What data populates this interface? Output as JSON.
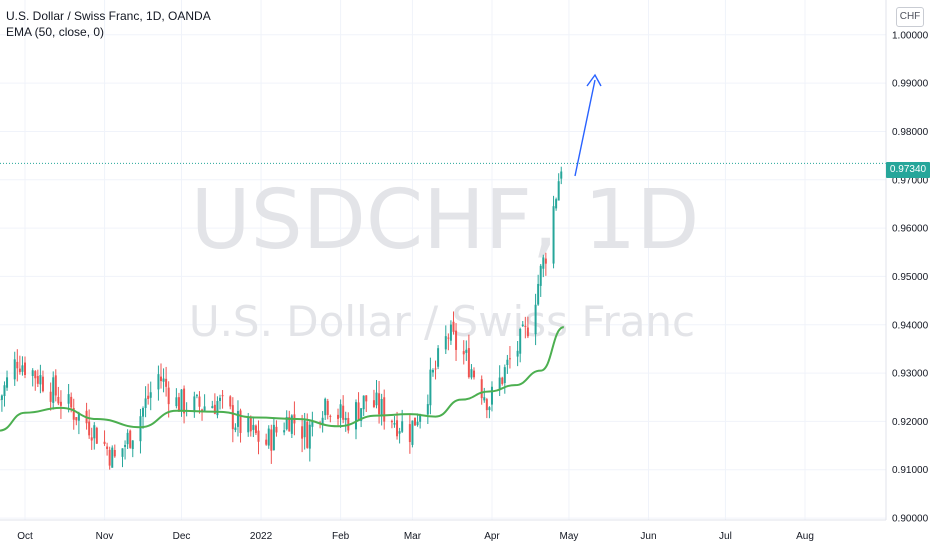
{
  "legend": {
    "title": "U.S. Dollar / Swiss Franc, 1D, OANDA",
    "indicator": "EMA (50, close, 0)"
  },
  "currency_button": "CHF",
  "watermark": {
    "symbol": "USDCHF, 1D",
    "name": "U.S. Dollar / Swiss Franc"
  },
  "colors": {
    "up": "#26a69a",
    "down": "#ef5350",
    "ema": "#4caf50",
    "arrow": "#2962ff",
    "grid": "#f0f3fa"
  },
  "chart_data": {
    "type": "candlestick",
    "title": "U.S. Dollar / Swiss Franc, 1D, OANDA",
    "current_price": "0.97340",
    "y_ticks": [
      "1.00000",
      "0.99000",
      "0.98000",
      "0.97000",
      "0.96000",
      "0.95000",
      "0.94000",
      "0.93000",
      "0.92000",
      "0.91000",
      "0.90000"
    ],
    "ylim": [
      0.8996,
      1.0072
    ],
    "x_ticks": [
      "Oct",
      "Nov",
      "Dec",
      "2022",
      "Feb",
      "Mar",
      "Apr",
      "May",
      "Jun",
      "Jul",
      "Aug"
    ],
    "x_tick_dates": [
      "2021-10-01",
      "2021-11-01",
      "2021-12-01",
      "2022-01-01",
      "2022-02-01",
      "2022-03-01",
      "2022-04-01",
      "2022-05-01",
      "2022-06-01",
      "2022-07-01",
      "2022-08-01"
    ],
    "close_waypoints": [
      [
        "2021-09-21",
        0.9245
      ],
      [
        "2021-09-28",
        0.933
      ],
      [
        "2021-10-08",
        0.9285
      ],
      [
        "2021-10-18",
        0.923
      ],
      [
        "2021-10-27",
        0.919
      ],
      [
        "2021-11-05",
        0.912
      ],
      [
        "2021-11-12",
        0.918
      ],
      [
        "2021-11-22",
        0.9295
      ],
      [
        "2021-11-29",
        0.924
      ],
      [
        "2021-12-07",
        0.923
      ],
      [
        "2021-12-15",
        0.924
      ],
      [
        "2021-12-24",
        0.919
      ],
      [
        "2022-01-03",
        0.9155
      ],
      [
        "2022-01-12",
        0.921
      ],
      [
        "2022-01-19",
        0.9175
      ],
      [
        "2022-01-26",
        0.9245
      ],
      [
        "2022-02-03",
        0.92
      ],
      [
        "2022-02-11",
        0.9245
      ],
      [
        "2022-02-18",
        0.922
      ],
      [
        "2022-02-28",
        0.918
      ],
      [
        "2022-03-07",
        0.9265
      ],
      [
        "2022-03-15",
        0.938
      ],
      [
        "2022-03-23",
        0.932
      ],
      [
        "2022-03-31",
        0.924
      ],
      [
        "2022-04-08",
        0.9325
      ],
      [
        "2022-04-14",
        0.938
      ],
      [
        "2022-04-22",
        0.955
      ],
      [
        "2022-04-28",
        0.9734
      ]
    ],
    "ema": {
      "name": "EMA (50, close, 0)",
      "points": [
        [
          "2021-09-21",
          0.9181
        ],
        [
          "2021-10-01",
          0.9218
        ],
        [
          "2021-10-15",
          0.9228
        ],
        [
          "2021-10-29",
          0.9205
        ],
        [
          "2021-11-15",
          0.9188
        ],
        [
          "2021-11-29",
          0.9222
        ],
        [
          "2021-12-15",
          0.922
        ],
        [
          "2021-12-30",
          0.9208
        ],
        [
          "2022-01-15",
          0.9205
        ],
        [
          "2022-01-31",
          0.919
        ],
        [
          "2022-02-15",
          0.9212
        ],
        [
          "2022-02-28",
          0.9215
        ],
        [
          "2022-03-10",
          0.921
        ],
        [
          "2022-03-20",
          0.9245
        ],
        [
          "2022-03-31",
          0.9262
        ],
        [
          "2022-04-10",
          0.9275
        ],
        [
          "2022-04-20",
          0.9305
        ],
        [
          "2022-04-29",
          0.9395
        ]
      ]
    }
  }
}
